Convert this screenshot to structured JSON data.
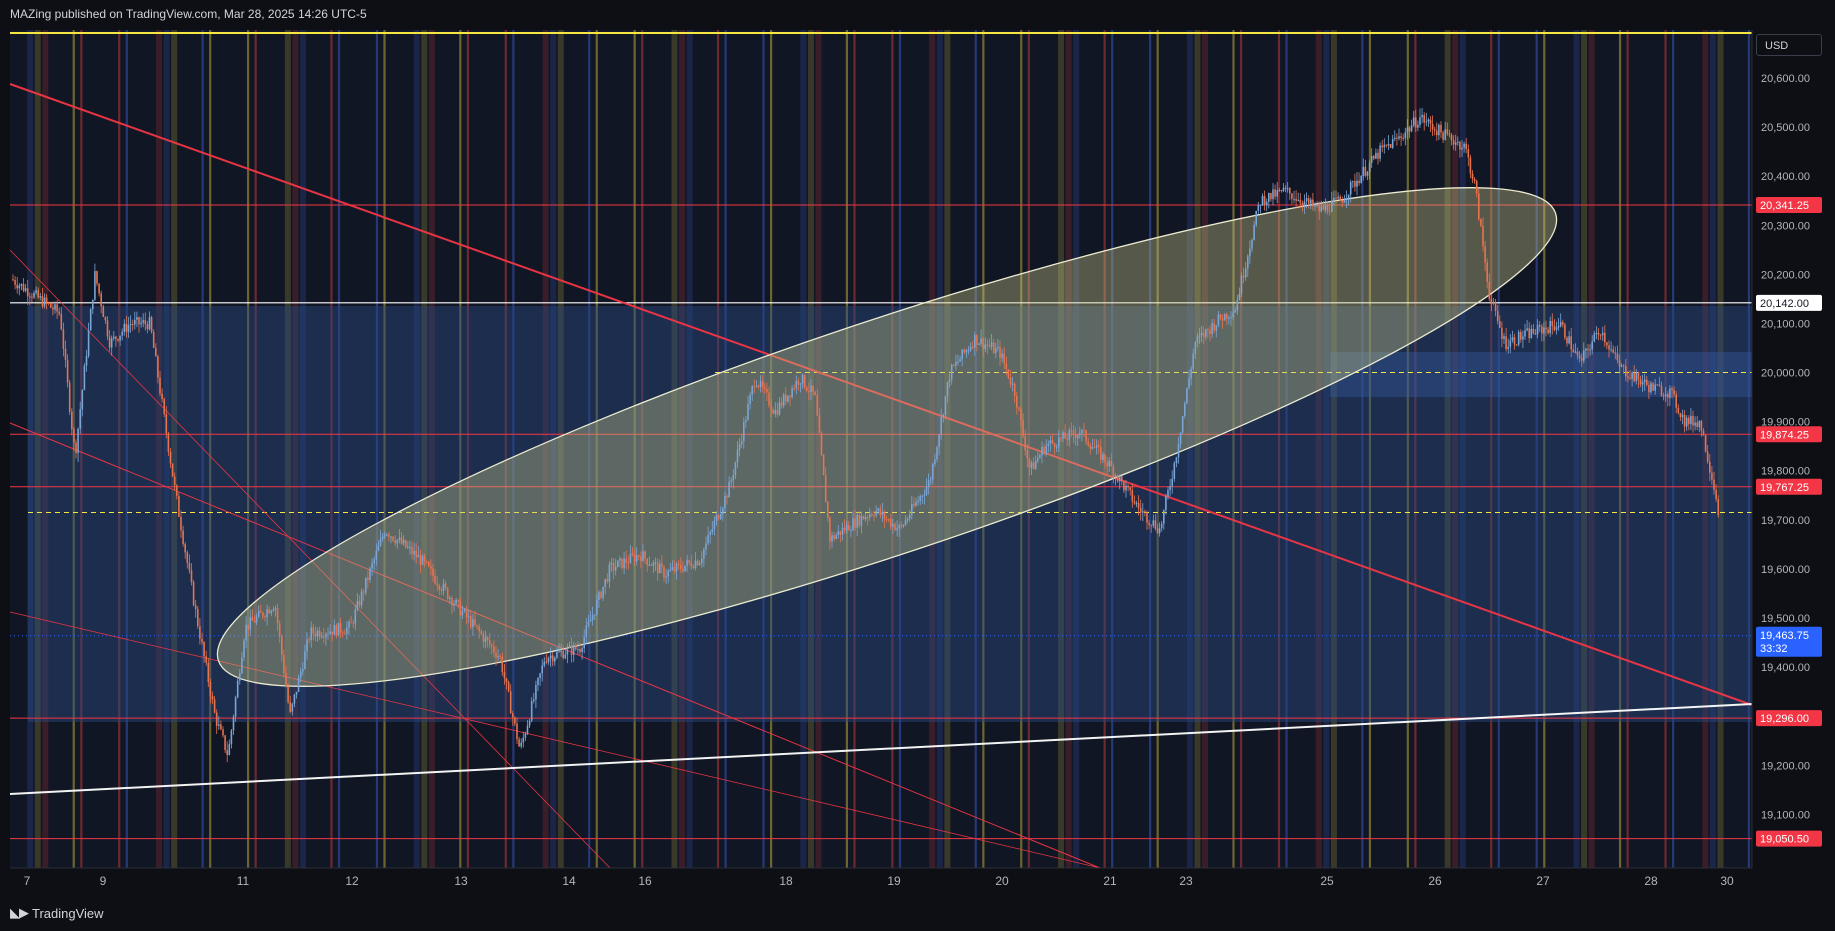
{
  "header": {
    "publisher_line": "MAZing published on TradingView.com, Mar 28, 2025 14:26 UTC-5"
  },
  "footer": {
    "brand": "TradingView"
  },
  "colors": {
    "background": "#0d0f14",
    "up": "#7aa6d6",
    "down": "#e8734f",
    "levels": "#f23645",
    "ellipse": "#c8c88a",
    "trend": "#ffffff",
    "last_price": "#2962ff"
  },
  "chart_data": {
    "type": "candlestick",
    "currency": "USD",
    "x_tick_labels": [
      "7",
      "9",
      "11",
      "12",
      "13",
      "14",
      "16",
      "18",
      "19",
      "20",
      "21",
      "23",
      "25",
      "26",
      "27",
      "28",
      "30"
    ],
    "y_ticks": [
      "20,600.00",
      "20,500.00",
      "20,400.00",
      "20,300.00",
      "20,200.00",
      "20,100.00",
      "20,000.00",
      "19,900.00",
      "19,800.00",
      "19,700.00",
      "19,600.00",
      "19,500.00",
      "19,400.00",
      "19,200.00",
      "19,100.00"
    ],
    "ylim": [
      19000,
      20640
    ],
    "levels": [
      {
        "value": 20341.25,
        "label": "20,341.25",
        "style": "red"
      },
      {
        "value": 20142.0,
        "label": "20,142.00",
        "style": "white"
      },
      {
        "value": 19874.25,
        "label": "19,874.25",
        "style": "red"
      },
      {
        "value": 19767.25,
        "label": "19,767.25",
        "style": "red"
      },
      {
        "value": 19296.0,
        "label": "19,296.00",
        "style": "red"
      },
      {
        "value": 19050.5,
        "label": "19,050.50",
        "style": "red"
      }
    ],
    "last_price": {
      "value": 19463.75,
      "label": "19,463.75",
      "countdown": "33:32"
    },
    "dashed_levels": [
      20000,
      19715
    ],
    "annotations": [
      "rising ellipse channel",
      "descending red trendlines",
      "rising white trendline",
      "blue range zone"
    ]
  }
}
